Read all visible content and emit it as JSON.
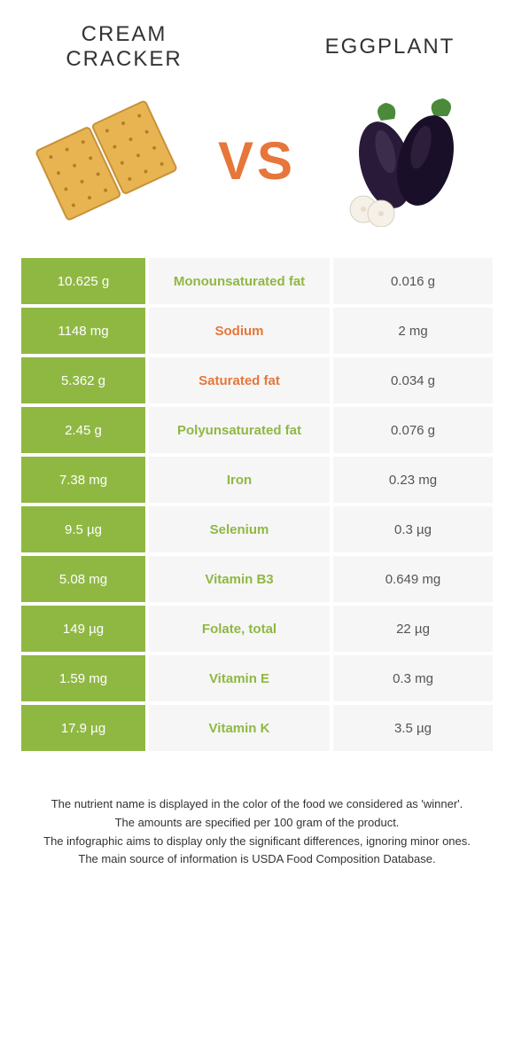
{
  "header": {
    "food1_name": "CREAM CRACKER",
    "food2_name": "EGGPLANT",
    "vs_label": "VS"
  },
  "colors": {
    "food1": "#8fb843",
    "food2": "#e6763a",
    "row_bg": "#f6f6f6",
    "text_dark": "#333333"
  },
  "rows": [
    {
      "nutrient": "Monounsaturated fat",
      "winner": "food1",
      "left": "10.625 g",
      "right": "0.016 g"
    },
    {
      "nutrient": "Sodium",
      "winner": "food2",
      "left": "1148 mg",
      "right": "2 mg"
    },
    {
      "nutrient": "Saturated fat",
      "winner": "food2",
      "left": "5.362 g",
      "right": "0.034 g"
    },
    {
      "nutrient": "Polyunsaturated fat",
      "winner": "food1",
      "left": "2.45 g",
      "right": "0.076 g"
    },
    {
      "nutrient": "Iron",
      "winner": "food1",
      "left": "7.38 mg",
      "right": "0.23 mg"
    },
    {
      "nutrient": "Selenium",
      "winner": "food1",
      "left": "9.5 µg",
      "right": "0.3 µg"
    },
    {
      "nutrient": "Vitamin B3",
      "winner": "food1",
      "left": "5.08 mg",
      "right": "0.649 mg"
    },
    {
      "nutrient": "Folate, total",
      "winner": "food1",
      "left": "149 µg",
      "right": "22 µg"
    },
    {
      "nutrient": "Vitamin E",
      "winner": "food1",
      "left": "1.59 mg",
      "right": "0.3 mg"
    },
    {
      "nutrient": "Vitamin K",
      "winner": "food1",
      "left": "17.9 µg",
      "right": "3.5 µg"
    }
  ],
  "footer": {
    "line1": "The nutrient name is displayed in the color of the food we considered as 'winner'.",
    "line2": "The amounts are specified per 100 gram of the product.",
    "line3": "The infographic aims to display only the significant differences, ignoring minor ones.",
    "line4": "The main source of information is USDA Food Composition Database."
  }
}
